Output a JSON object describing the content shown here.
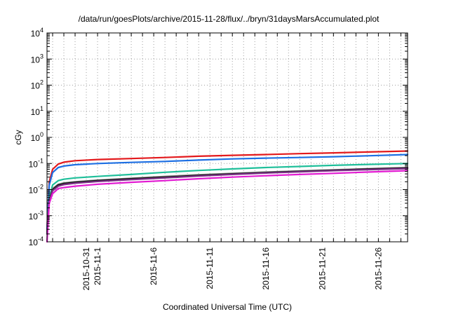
{
  "chart_data": {
    "type": "line",
    "title": "/data/run/goesPlots/archive/2015-11-28/flux/../bryn/31daysMarsAccumulated.plot",
    "xlabel": "Coordinated Universal Time (UTC)",
    "ylabel": "cGy",
    "yscale": "log",
    "ylim": [
      0.0001,
      10000
    ],
    "y_ticks": [
      {
        "value": 0.0001,
        "base": "10",
        "exp": "-4"
      },
      {
        "value": 0.001,
        "base": "10",
        "exp": "-3"
      },
      {
        "value": 0.01,
        "base": "10",
        "exp": "-2"
      },
      {
        "value": 0.1,
        "base": "10",
        "exp": "-1"
      },
      {
        "value": 1,
        "base": "10",
        "exp": "0"
      },
      {
        "value": 10,
        "base": "10",
        "exp": "1"
      },
      {
        "value": 100,
        "base": "10",
        "exp": "2"
      },
      {
        "value": 1000,
        "base": "10",
        "exp": "3"
      },
      {
        "value": 10000,
        "base": "10",
        "exp": "4"
      }
    ],
    "xlim": [
      -2.5,
      29.6
    ],
    "x_unit": "days after 2015-10-30",
    "x_ticks": [
      {
        "value": 1,
        "label": "2015-10-31"
      },
      {
        "value": 2,
        "label": "2015-11-1"
      },
      {
        "value": 7,
        "label": "2015-11-6"
      },
      {
        "value": 12,
        "label": "2015-11-11"
      },
      {
        "value": 17,
        "label": "2015-11-16"
      },
      {
        "value": 22,
        "label": "2015-11-21"
      },
      {
        "value": 27,
        "label": "2015-11-26"
      }
    ],
    "x_grid_extra": [
      -3,
      32
    ],
    "grid": true,
    "series": [
      {
        "name": "red",
        "color": "#e3191c",
        "x": [
          -2.5,
          -2.3,
          -2.0,
          -1.5,
          -1.0,
          0,
          2,
          5,
          8,
          11,
          14,
          17,
          20,
          23,
          26,
          29.6
        ],
        "y": [
          0.0003,
          0.02,
          0.06,
          0.095,
          0.112,
          0.128,
          0.142,
          0.155,
          0.17,
          0.19,
          0.205,
          0.22,
          0.238,
          0.255,
          0.275,
          0.3
        ]
      },
      {
        "name": "blue",
        "color": "#1d6fe3",
        "x": [
          -2.5,
          -2.3,
          -2.0,
          -1.5,
          -1.0,
          0,
          2,
          5,
          8,
          11,
          14,
          17,
          20,
          23,
          26,
          29.6
        ],
        "y": [
          0.0003,
          0.015,
          0.045,
          0.07,
          0.08,
          0.09,
          0.1,
          0.11,
          0.12,
          0.135,
          0.15,
          0.16,
          0.17,
          0.182,
          0.197,
          0.22
        ]
      },
      {
        "name": "teal",
        "color": "#1fbf9a",
        "x": [
          -2.5,
          -2.3,
          -2.0,
          -1.5,
          -1.0,
          0,
          2,
          5,
          8,
          11,
          14,
          17,
          20,
          23,
          26,
          29.6
        ],
        "y": [
          0.0002,
          0.005,
          0.015,
          0.022,
          0.025,
          0.028,
          0.032,
          0.038,
          0.046,
          0.054,
          0.062,
          0.07,
          0.077,
          0.085,
          0.092,
          0.1
        ]
      },
      {
        "name": "gray",
        "color": "#8a8a8a",
        "x": [
          -2.5,
          -2.3,
          -2.0,
          -1.5,
          -1.0,
          0,
          2,
          5,
          8,
          11,
          14,
          17,
          20,
          23,
          26,
          29.6
        ],
        "y": [
          0.0002,
          0.004,
          0.011,
          0.016,
          0.018,
          0.02,
          0.023,
          0.027,
          0.032,
          0.037,
          0.042,
          0.047,
          0.052,
          0.057,
          0.063,
          0.07
        ]
      },
      {
        "name": "black",
        "color": "#1a1a1a",
        "x": [
          -2.5,
          -2.3,
          -2.0,
          -1.5,
          -1.0,
          0,
          2,
          5,
          8,
          11,
          14,
          17,
          20,
          23,
          26,
          29.6
        ],
        "y": [
          0.0002,
          0.004,
          0.01,
          0.015,
          0.017,
          0.019,
          0.022,
          0.026,
          0.03,
          0.035,
          0.04,
          0.045,
          0.05,
          0.055,
          0.061,
          0.067
        ]
      },
      {
        "name": "purple",
        "color": "#7b2f86",
        "x": [
          -2.5,
          -2.3,
          -2.0,
          -1.5,
          -1.0,
          0,
          2,
          5,
          8,
          11,
          14,
          17,
          20,
          23,
          26,
          29.6
        ],
        "y": [
          0.0002,
          0.0035,
          0.009,
          0.0135,
          0.0155,
          0.0175,
          0.0205,
          0.024,
          0.028,
          0.033,
          0.038,
          0.043,
          0.048,
          0.053,
          0.058,
          0.064
        ]
      },
      {
        "name": "magenta",
        "color": "#e21bd2",
        "x": [
          -2.5,
          -2.3,
          -2.0,
          -1.5,
          -1.0,
          0,
          2,
          5,
          8,
          11,
          14,
          17,
          20,
          23,
          26,
          29.6
        ],
        "y": [
          0.0001,
          0.003,
          0.007,
          0.011,
          0.012,
          0.0135,
          0.016,
          0.019,
          0.022,
          0.026,
          0.03,
          0.034,
          0.038,
          0.042,
          0.047,
          0.053
        ]
      }
    ]
  }
}
